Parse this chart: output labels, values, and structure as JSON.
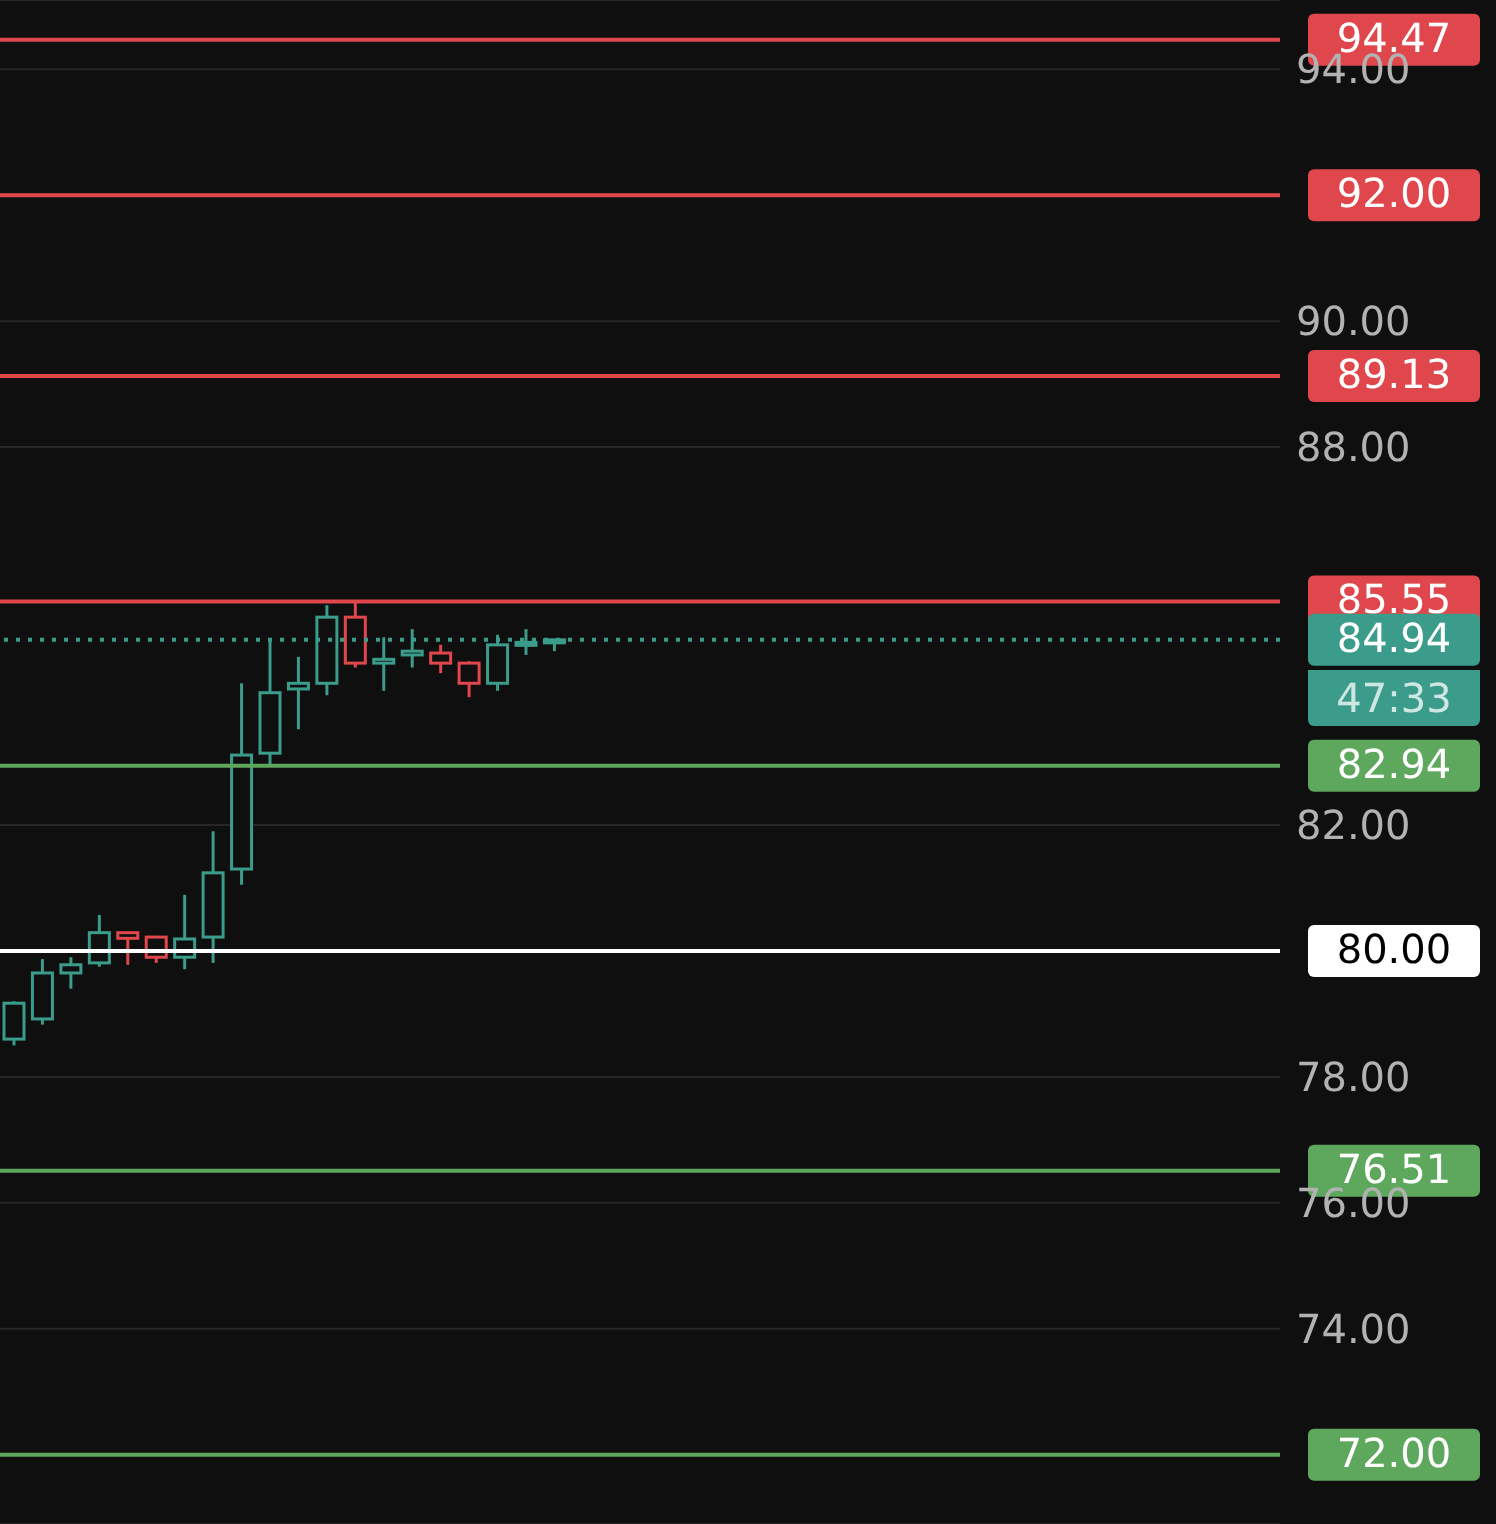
{
  "chart_data": {
    "type": "candlestick",
    "categories": [
      null,
      null,
      null,
      null,
      null,
      null,
      null,
      null,
      null,
      null,
      null,
      null,
      null,
      null,
      null,
      null,
      null,
      null,
      null,
      null,
      null,
      null,
      null,
      null,
      null,
      null,
      null,
      null,
      null,
      null,
      null,
      null,
      null,
      null,
      null,
      null,
      null,
      null,
      null,
      null,
      null,
      null,
      null,
      null,
      null
    ],
    "ohlc": [
      [
        78.6,
        79.2,
        78.5,
        79.17
      ],
      [
        78.92,
        79.87,
        78.83,
        79.65
      ],
      [
        79.65,
        79.9,
        79.4,
        79.78
      ],
      [
        79.81,
        80.57,
        79.75,
        80.29
      ],
      [
        80.29,
        80.3,
        79.78,
        80.2
      ],
      [
        80.22,
        80.22,
        79.81,
        79.9
      ],
      [
        79.9,
        80.89,
        79.71,
        80.19
      ],
      [
        80.22,
        81.9,
        79.81,
        81.24
      ],
      [
        81.3,
        84.25,
        81.05,
        83.11
      ],
      [
        83.14,
        84.95,
        82.94,
        84.1
      ],
      [
        84.16,
        84.67,
        83.52,
        84.25
      ],
      [
        84.25,
        85.49,
        84.06,
        85.3
      ],
      [
        85.3,
        85.55,
        84.5,
        84.57
      ],
      [
        84.57,
        84.98,
        84.13,
        84.63
      ],
      [
        84.7,
        85.11,
        84.5,
        84.76
      ],
      [
        84.73,
        84.86,
        84.41,
        84.57
      ],
      [
        84.57,
        84.6,
        84.03,
        84.25
      ],
      [
        84.25,
        85.02,
        84.13,
        84.86
      ],
      [
        84.86,
        85.11,
        84.7,
        84.9
      ],
      [
        84.9,
        84.94,
        84.76,
        84.94
      ],
      null,
      null,
      null,
      null,
      null,
      null,
      null,
      null,
      null,
      null,
      null,
      null,
      null,
      null,
      null,
      null,
      null,
      null,
      null,
      null,
      null,
      null,
      null,
      null,
      null
    ],
    "colors": [
      "#3b9c8b",
      "#3b9c8b",
      "#3b9c8b",
      "#3b9c8b",
      "#e0474c",
      "#e0474c",
      "#3b9c8b",
      "#3b9c8b",
      "#3b9c8b",
      "#3b9c8b",
      "#3b9c8b",
      "#3b9c8b",
      "#e0474c",
      "#3b9c8b",
      "#3b9c8b",
      "#e0474c",
      "#e0474c",
      "#3b9c8b",
      "#3b9c8b",
      "#3b9c8b",
      null,
      null,
      null,
      null,
      null,
      null,
      null,
      null,
      null,
      null,
      null,
      null,
      null,
      null,
      null,
      null,
      null,
      null,
      null,
      null,
      null,
      null,
      null,
      null,
      null
    ],
    "ylim": [
      70.9,
      95.1
    ],
    "yticks": [
      {
        "value": 74,
        "label": "74.00"
      },
      {
        "value": 76,
        "label": "76.00"
      },
      {
        "value": 78,
        "label": "78.00"
      },
      {
        "value": 82,
        "label": "82.00"
      },
      {
        "value": 88,
        "label": "88.00"
      },
      {
        "value": 90,
        "label": "90.00"
      },
      {
        "value": 94,
        "label": "94.00"
      }
    ],
    "tick_labels": "y",
    "grid": "y",
    "legend": false,
    "ref_lines": [
      {
        "axis": "y",
        "value": 94.47,
        "label": "94.47",
        "color": "#e0474c"
      },
      {
        "axis": "y",
        "value": 92,
        "label": "92.00",
        "color": "#e0474c"
      },
      {
        "axis": "y",
        "value": 89.13,
        "label": "89.13",
        "color": "#e0474c"
      },
      {
        "axis": "y",
        "value": 85.55,
        "label": "85.55",
        "color": "#e0474c"
      },
      {
        "axis": "y",
        "value": 84.94,
        "label": "84.94",
        "color": "#3b9c8b",
        "line_style": "dotted"
      },
      {
        "axis": "y",
        "value": 82.94,
        "label": "82.94",
        "color": "#5ea85e"
      },
      {
        "axis": "y",
        "value": 80,
        "label": "80.00",
        "color": "#ffffff"
      },
      {
        "axis": "y",
        "value": 76.51,
        "label": "76.51",
        "color": "#5ea85e"
      },
      {
        "axis": "y",
        "value": 72,
        "label": "72.00",
        "color": "#5ea85e"
      }
    ],
    "annotations": [
      "47:33"
    ]
  }
}
